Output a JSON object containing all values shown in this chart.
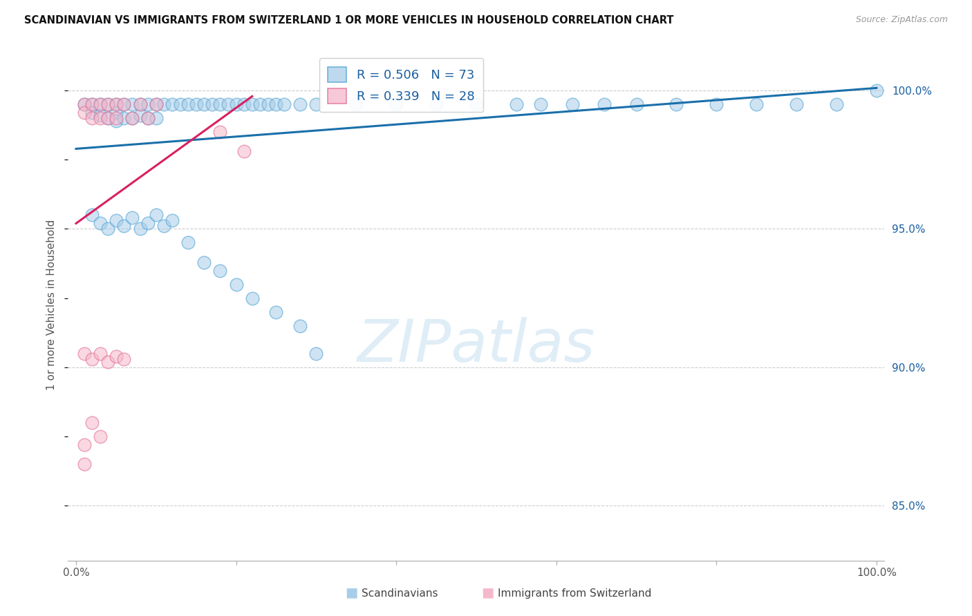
{
  "title": "SCANDINAVIAN VS IMMIGRANTS FROM SWITZERLAND 1 OR MORE VEHICLES IN HOUSEHOLD CORRELATION CHART",
  "source": "Source: ZipAtlas.com",
  "ylabel": "1 or more Vehicles in Household",
  "blue_R": 0.506,
  "blue_N": 73,
  "pink_R": 0.339,
  "pink_N": 28,
  "blue_fill": "#a8cde8",
  "blue_edge": "#4a9fd4",
  "pink_fill": "#f5b8cb",
  "pink_edge": "#e06890",
  "trend_blue": "#1a6faa",
  "trend_pink": "#d82060",
  "legend_text_color": "#1a5fa0",
  "grid_color": "#cccccc",
  "right_tick_color": "#1a5fa0",
  "watermark_text": "ZIPatlas",
  "watermark_color": "#c5dff0",
  "bottom_label_blue": "Scandinavians",
  "bottom_label_pink": "Immigrants from Switzerland",
  "xlim": [
    -1,
    101
  ],
  "ylim": [
    83.0,
    101.5
  ],
  "ytick_positions": [
    85.0,
    90.0,
    95.0,
    100.0
  ],
  "ytick_labels": [
    "85.0%",
    "90.0%",
    "95.0%",
    "100.0%"
  ],
  "xtick_positions": [
    0,
    20,
    40,
    60,
    80,
    100
  ],
  "xtick_labels": [
    "0.0%",
    "",
    "",
    "",
    "",
    "100.0%"
  ],
  "blue_trend_x": [
    0,
    100
  ],
  "blue_trend_y": [
    97.9,
    100.1
  ],
  "pink_trend_x": [
    0,
    22
  ],
  "pink_trend_y": [
    95.2,
    99.8
  ],
  "scand_x": [
    1,
    2,
    2,
    3,
    3,
    4,
    4,
    5,
    5,
    5,
    6,
    6,
    7,
    7,
    8,
    8,
    9,
    9,
    10,
    10,
    11,
    12,
    13,
    14,
    15,
    16,
    17,
    18,
    19,
    20,
    21,
    22,
    23,
    24,
    25,
    26,
    28,
    30,
    35,
    40,
    45,
    50,
    55,
    58,
    62,
    66,
    70,
    75,
    80,
    85,
    90,
    95,
    100,
    2,
    3,
    4,
    5,
    6,
    7,
    8,
    9,
    10,
    11,
    12,
    14,
    16,
    18,
    20,
    22,
    25,
    28,
    30
  ],
  "scand_y": [
    99.5,
    99.5,
    99.2,
    99.5,
    99.1,
    99.5,
    99.0,
    99.5,
    99.2,
    98.9,
    99.5,
    99.0,
    99.5,
    99.0,
    99.5,
    99.1,
    99.5,
    99.0,
    99.5,
    99.0,
    99.5,
    99.5,
    99.5,
    99.5,
    99.5,
    99.5,
    99.5,
    99.5,
    99.5,
    99.5,
    99.5,
    99.5,
    99.5,
    99.5,
    99.5,
    99.5,
    99.5,
    99.5,
    99.5,
    99.5,
    99.5,
    99.5,
    99.5,
    99.5,
    99.5,
    99.5,
    99.5,
    99.5,
    99.5,
    99.5,
    99.5,
    99.5,
    100.0,
    95.5,
    95.2,
    95.0,
    95.3,
    95.1,
    95.4,
    95.0,
    95.2,
    95.5,
    95.1,
    95.3,
    94.5,
    93.8,
    93.5,
    93.0,
    92.5,
    92.0,
    91.5,
    90.5
  ],
  "swiss_x": [
    1,
    1,
    2,
    2,
    3,
    3,
    4,
    4,
    5,
    5,
    6,
    7,
    8,
    9,
    10,
    1,
    2,
    3,
    4,
    5,
    6,
    1,
    1,
    2,
    3,
    18,
    21
  ],
  "swiss_y": [
    99.5,
    99.2,
    99.5,
    99.0,
    99.5,
    99.0,
    99.5,
    99.0,
    99.5,
    99.0,
    99.5,
    99.0,
    99.5,
    99.0,
    99.5,
    90.5,
    90.3,
    90.5,
    90.2,
    90.4,
    90.3,
    87.2,
    86.5,
    88.0,
    87.5,
    98.5,
    97.8
  ]
}
